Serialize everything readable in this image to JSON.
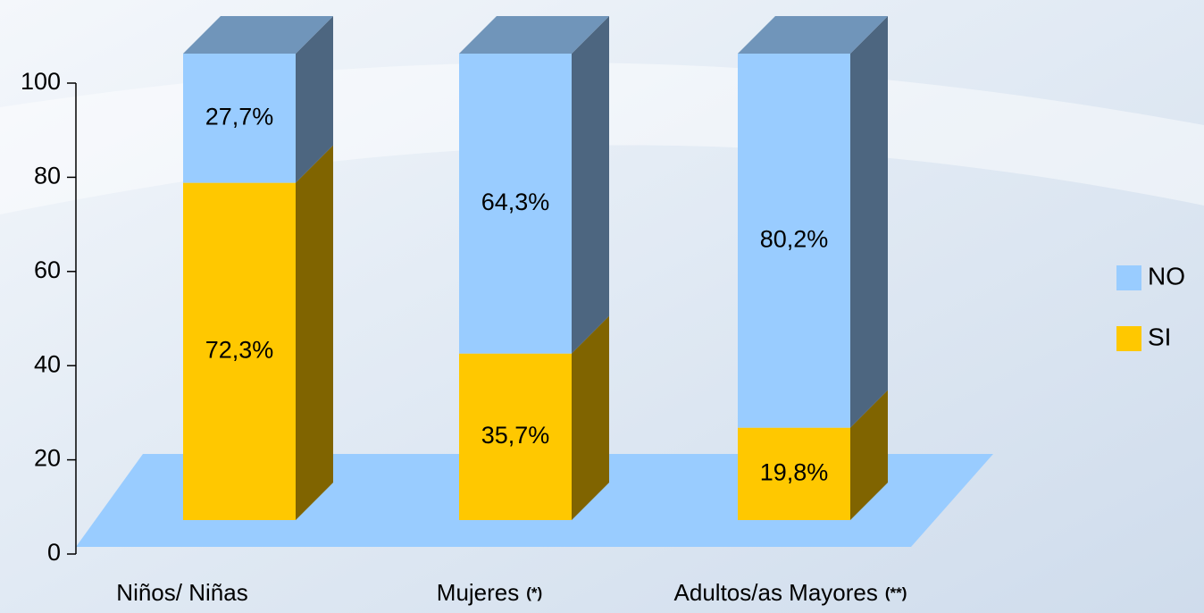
{
  "chart_data": {
    "type": "bar3d_stacked",
    "categories": [
      "Niños/ Niñas",
      "Mujeres",
      "Adultos/as Mayores"
    ],
    "category_notes": [
      null,
      "(*)",
      "(**)"
    ],
    "series": [
      {
        "name": "SI",
        "color": "#FFC800",
        "values": [
          72.3,
          35.7,
          19.8
        ],
        "value_labels": [
          "72,3%",
          "35,7%",
          "19,8%"
        ]
      },
      {
        "name": "NO",
        "color": "#99CCFF",
        "values": [
          27.7,
          64.3,
          80.2
        ],
        "value_labels": [
          "27,7%",
          "64,3%",
          "80,2%"
        ]
      }
    ],
    "ylim": [
      0,
      100
    ],
    "yticks": [
      0,
      20,
      40,
      60,
      80,
      100
    ],
    "legend": "right"
  }
}
